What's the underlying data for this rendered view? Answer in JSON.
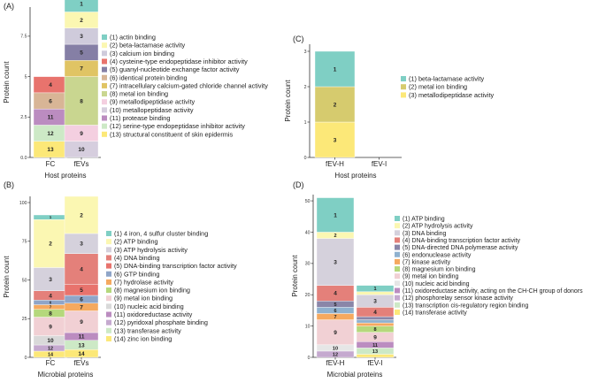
{
  "chart_data": [
    {
      "type": "bar",
      "panel_label": "(A)",
      "stacked": true,
      "ylabel": "Protein count",
      "xlabel": "Host proteins",
      "ylim": [
        0,
        9.3
      ],
      "yticks": [
        "0.0",
        "2.5",
        "5",
        "7.5"
      ],
      "ytick_values": [
        0,
        2.5,
        5,
        7.5
      ],
      "categories": [
        "FC",
        "fEVs"
      ],
      "legend_position": "right",
      "series": [
        {
          "id": 1,
          "name": "(1) actin binding",
          "color": "#7fcfc4",
          "values": [
            0,
            1
          ]
        },
        {
          "id": 2,
          "name": "(2) beta-lactamase activity",
          "color": "#fbf7b2",
          "values": [
            0,
            1
          ]
        },
        {
          "id": 3,
          "name": "(3) calcium ion binding",
          "color": "#cfcbdb",
          "values": [
            0,
            1
          ]
        },
        {
          "id": 4,
          "name": "(4) cysteine-type endopeptidase inhibitor activity",
          "color": "#e8736d",
          "values": [
            1,
            0
          ]
        },
        {
          "id": 5,
          "name": "(5) guanyl-nucleotide exchange factor activity",
          "color": "#857fa5",
          "values": [
            0,
            1
          ]
        },
        {
          "id": 6,
          "name": "(6) identical protein binding",
          "color": "#d8b596",
          "values": [
            1,
            0
          ]
        },
        {
          "id": 7,
          "name": "(7) intracellulary calcium-gated chloride channel activity",
          "color": "#e0c464",
          "values": [
            0,
            1
          ]
        },
        {
          "id": 8,
          "name": "(8) metal ion binding",
          "color": "#c9d690",
          "values": [
            0,
            3
          ]
        },
        {
          "id": 9,
          "name": "(9) metallodipeptidase activity",
          "color": "#f4cfe0",
          "values": [
            0,
            1
          ]
        },
        {
          "id": 10,
          "name": "(10) metallopeptidase activity",
          "color": "#d6cede",
          "values": [
            0,
            1
          ]
        },
        {
          "id": 11,
          "name": "(11) protease binding",
          "color": "#bb8cc0",
          "values": [
            1,
            0
          ]
        },
        {
          "id": 12,
          "name": "(12) serine-type endopeptidase inhibitor activity",
          "color": "#cde9c6",
          "values": [
            1,
            0
          ]
        },
        {
          "id": 13,
          "name": "(13) structural constituent of skin epidermis",
          "color": "#fce878",
          "values": [
            1,
            0
          ]
        }
      ]
    },
    {
      "type": "bar",
      "panel_label": "(C)",
      "stacked": true,
      "ylabel": "Protein count",
      "xlabel": "Host proteins",
      "ylim": [
        0,
        3.2
      ],
      "yticks": [
        "0",
        "1",
        "2",
        "3"
      ],
      "ytick_values": [
        0,
        1,
        2,
        3
      ],
      "categories": [
        "fEV-H",
        "fEV-I"
      ],
      "legend_position": "right",
      "series": [
        {
          "id": 1,
          "name": "(1) beta-lactamase activity",
          "color": "#7fcfc4",
          "values": [
            1,
            0
          ]
        },
        {
          "id": 2,
          "name": "(2) metal ion binding",
          "color": "#d6cb6e",
          "values": [
            1,
            0
          ]
        },
        {
          "id": 3,
          "name": "(3) metallodipeptidase activity",
          "color": "#fce878",
          "values": [
            1,
            0
          ]
        }
      ]
    },
    {
      "type": "bar",
      "panel_label": "(B)",
      "stacked": true,
      "ylabel": "Protein count",
      "xlabel": "Microbial proteins",
      "ylim": [
        0,
        104
      ],
      "yticks": [
        "0",
        "25",
        "50",
        "75",
        "100"
      ],
      "ytick_values": [
        0,
        25,
        50,
        75,
        100
      ],
      "categories": [
        "FC",
        "fEVs"
      ],
      "legend_position": "right",
      "series": [
        {
          "id": 1,
          "name": "(1) 4 iron, 4 sulfur cluster binding",
          "color": "#7fcfc4",
          "values": [
            3,
            0
          ]
        },
        {
          "id": 2,
          "name": "(2) ATP binding",
          "color": "#fbf7b2",
          "values": [
            31,
            24
          ]
        },
        {
          "id": 3,
          "name": "(3) ATP hydrolysis activity",
          "color": "#d5d1dc",
          "values": [
            15,
            13
          ]
        },
        {
          "id": 4,
          "name": "(4) DNA binding",
          "color": "#e4807a",
          "values": [
            6,
            20
          ]
        },
        {
          "id": 5,
          "name": "(5) DNA-binding transcription factor activity",
          "color": "#e8736d",
          "values": [
            0,
            7
          ]
        },
        {
          "id": 6,
          "name": "(6) GTP binding",
          "color": "#8fa5c8",
          "values": [
            3,
            5
          ]
        },
        {
          "id": 7,
          "name": "(7) hydrolase activity",
          "color": "#f5a95f",
          "values": [
            3,
            5
          ]
        },
        {
          "id": 8,
          "name": "(8) magnesium ion binding",
          "color": "#b5d87c",
          "values": [
            5,
            0
          ]
        },
        {
          "id": 9,
          "name": "(9) metal ion binding",
          "color": "#f1d0d4",
          "values": [
            12,
            14
          ]
        },
        {
          "id": 10,
          "name": "(10) nucleic acid binding",
          "color": "#d9d9d9",
          "values": [
            6,
            0
          ]
        },
        {
          "id": 11,
          "name": "(11) oxidoreductase activity",
          "color": "#bb8cc0",
          "values": [
            0,
            5
          ]
        },
        {
          "id": 12,
          "name": "(12) pyridoxal phosphate binding",
          "color": "#c5a9cf",
          "values": [
            4,
            0
          ]
        },
        {
          "id": 13,
          "name": "(13) transferase activity",
          "color": "#cde9c6",
          "values": [
            0,
            6
          ]
        },
        {
          "id": 14,
          "name": "(14) zinc ion binding",
          "color": "#fce878",
          "values": [
            4,
            5
          ]
        }
      ]
    },
    {
      "type": "bar",
      "panel_label": "(D)",
      "stacked": true,
      "ylabel": "Protein count",
      "xlabel": "Microbial proteins",
      "ylim": [
        0,
        52
      ],
      "yticks": [
        "0",
        "10",
        "20",
        "30",
        "40",
        "50"
      ],
      "ytick_values": [
        0,
        10,
        20,
        30,
        40,
        50
      ],
      "categories": [
        "fEV-H",
        "fEV-I"
      ],
      "legend_position": "right",
      "series": [
        {
          "id": 1,
          "name": "(1) ATP binding",
          "color": "#7fcfc4",
          "values": [
            11,
            2
          ]
        },
        {
          "id": 2,
          "name": "(2) ATP hydrolysis activity",
          "color": "#fbf7b2",
          "values": [
            2,
            1
          ]
        },
        {
          "id": 3,
          "name": "(3) DNA binding",
          "color": "#d5d1dc",
          "values": [
            15,
            4
          ]
        },
        {
          "id": 4,
          "name": "(4) DNA-binding transcription factor activity",
          "color": "#e4807a",
          "values": [
            5,
            3
          ]
        },
        {
          "id": 5,
          "name": "(5) DNA-directed DNA polymerase activity",
          "color": "#8a86a8",
          "values": [
            2,
            1
          ]
        },
        {
          "id": 6,
          "name": "(6) endonuclease activity",
          "color": "#8fb1cf",
          "values": [
            2,
            1
          ]
        },
        {
          "id": 7,
          "name": "(7) kinase activity",
          "color": "#f5a95f",
          "values": [
            2,
            1
          ]
        },
        {
          "id": 8,
          "name": "(8) magnesium ion binding",
          "color": "#b5d87c",
          "values": [
            0,
            2
          ]
        },
        {
          "id": 9,
          "name": "(9) metal ion binding",
          "color": "#f1d0d4",
          "values": [
            8,
            3
          ]
        },
        {
          "id": 10,
          "name": "(10) nucleic acid binding",
          "color": "#e6e6e6",
          "values": [
            2,
            0
          ]
        },
        {
          "id": 11,
          "name": "(11) oxidoreductase activity, acting on the CH-CH group of donors",
          "color": "#bb8cc0",
          "values": [
            0,
            2
          ]
        },
        {
          "id": 12,
          "name": "(12) phosphorelay sensor kinase activity",
          "color": "#c5a9cf",
          "values": [
            2,
            0
          ]
        },
        {
          "id": 13,
          "name": "(13) transcription cis-regulatory region binding",
          "color": "#cde9c6",
          "values": [
            0,
            2
          ]
        },
        {
          "id": 14,
          "name": "(14) transferase activity",
          "color": "#fce878",
          "values": [
            0,
            1
          ]
        }
      ]
    }
  ]
}
